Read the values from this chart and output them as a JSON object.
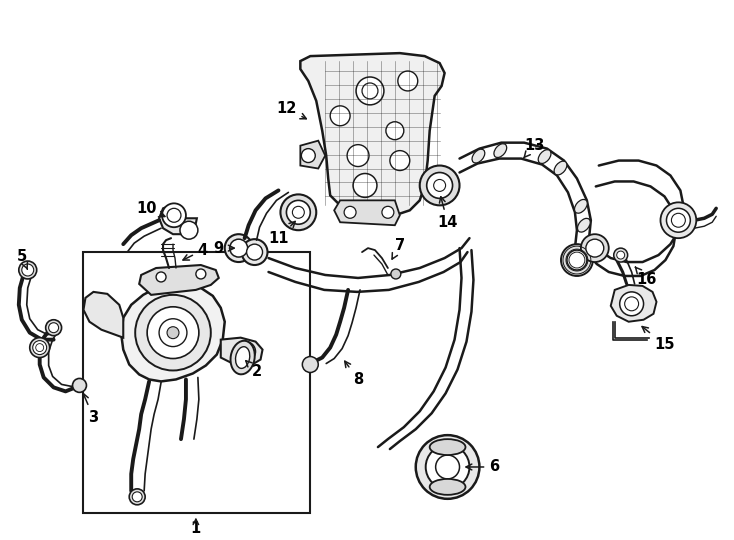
{
  "background_color": "#ffffff",
  "line_color": "#1a1a1a",
  "text_color": "#000000",
  "label_fontsize": 10.5,
  "fig_width": 7.34,
  "fig_height": 5.4,
  "dpi": 100
}
